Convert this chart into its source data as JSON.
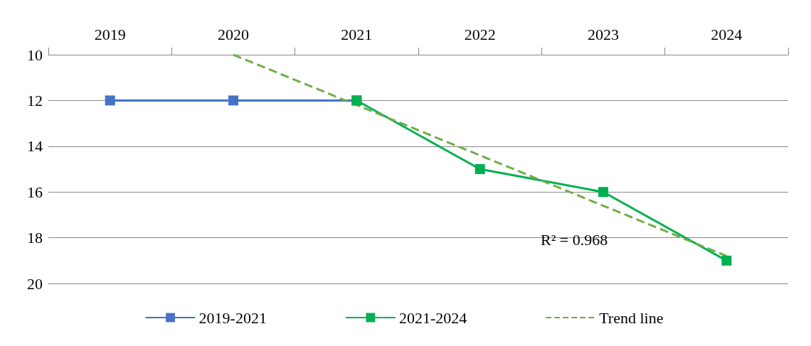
{
  "chart_data": {
    "type": "line",
    "categories": [
      "2019",
      "2020",
      "2021",
      "2022",
      "2023",
      "2024"
    ],
    "series": [
      {
        "name": "2019-2021",
        "color": "#4472c4",
        "values": [
          12,
          12,
          12,
          null,
          null,
          null
        ]
      },
      {
        "name": "2021-2024",
        "color": "#00b050",
        "values": [
          null,
          null,
          12,
          15,
          16,
          19
        ]
      },
      {
        "name": "Trend line",
        "color": "#70ad47",
        "values": [
          null,
          10,
          12.2,
          14.4,
          16.6,
          18.8
        ],
        "line_style": "dashed",
        "marker": "none"
      }
    ],
    "ylim": [
      20,
      10
    ],
    "yticks": [
      10,
      12,
      14,
      16,
      18,
      20
    ],
    "grid": "y",
    "legend": "bottom",
    "marker": "square",
    "line_style": "solid",
    "annotations": [
      "R² = 0.968"
    ]
  }
}
